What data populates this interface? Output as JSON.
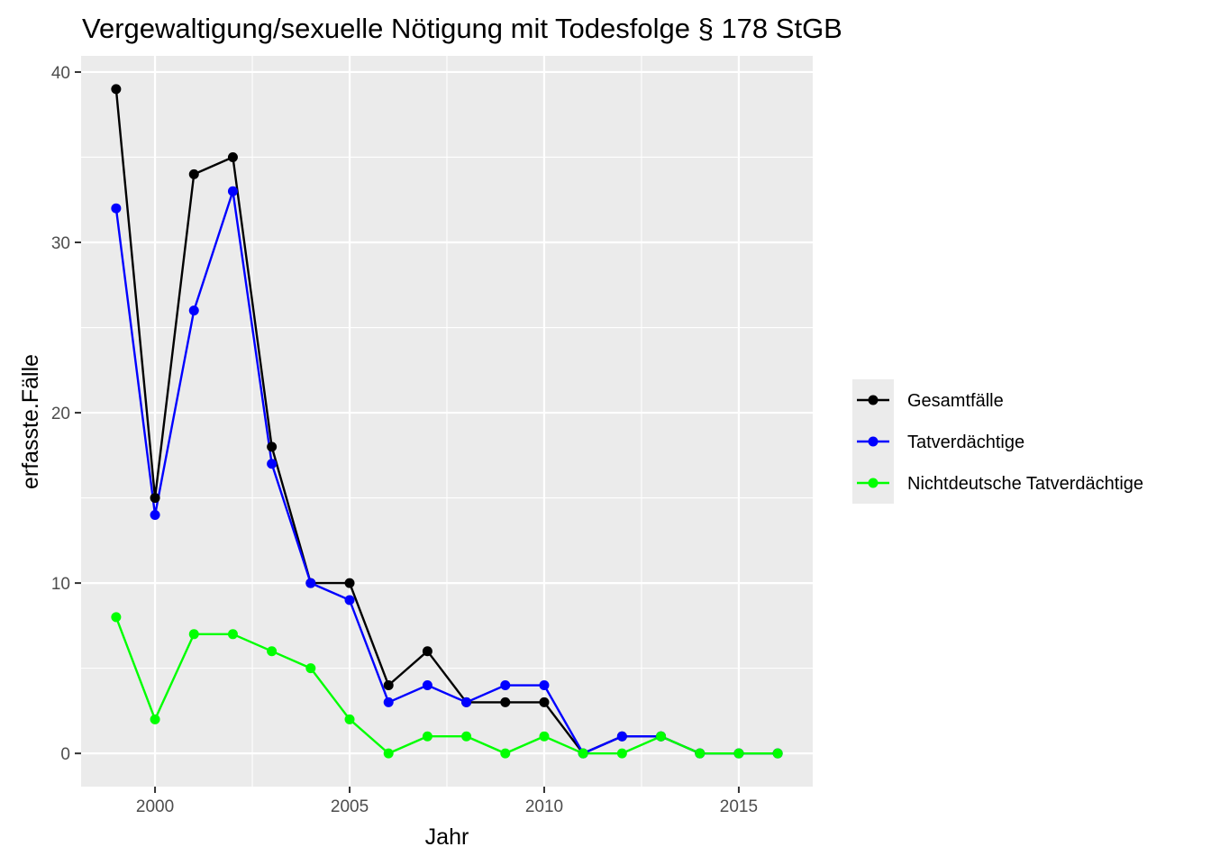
{
  "chart_data": {
    "type": "line",
    "title": "Vergewaltigung/sexuelle Nötigung mit Todesfolge § 178 StGB",
    "xlabel": "Jahr",
    "ylabel": "erfasste.Fälle",
    "x": [
      1999,
      2000,
      2001,
      2002,
      2003,
      2004,
      2005,
      2006,
      2007,
      2008,
      2009,
      2010,
      2011,
      2012,
      2013,
      2014,
      2015,
      2016
    ],
    "xlim": [
      1998.1,
      2016.9
    ],
    "ylim": [
      -1.95,
      40.95
    ],
    "xticks": [
      2000,
      2005,
      2010,
      2015
    ],
    "yticks": [
      0,
      10,
      20,
      30,
      40
    ],
    "xtick_labels": [
      "2000",
      "2005",
      "2010",
      "2015"
    ],
    "ytick_labels": [
      "0",
      "10",
      "20",
      "30",
      "40"
    ],
    "grid": true,
    "legend_position": "right",
    "series": [
      {
        "name": "Gesamtfälle",
        "color": "#000000",
        "values": [
          39,
          15,
          34,
          35,
          18,
          10,
          10,
          4,
          6,
          3,
          3,
          3,
          0,
          1,
          1,
          0,
          0,
          0
        ]
      },
      {
        "name": "Tatverdächtige",
        "color": "#0000ff",
        "values": [
          32,
          14,
          26,
          33,
          17,
          10,
          9,
          3,
          4,
          3,
          4,
          4,
          0,
          1,
          1,
          0,
          0,
          0
        ]
      },
      {
        "name": "Nichtdeutsche Tatverdächtige",
        "color": "#00ff00",
        "values": [
          8,
          2,
          7,
          7,
          6,
          5,
          2,
          0,
          1,
          1,
          0,
          1,
          0,
          0,
          1,
          0,
          0,
          0
        ]
      }
    ]
  }
}
